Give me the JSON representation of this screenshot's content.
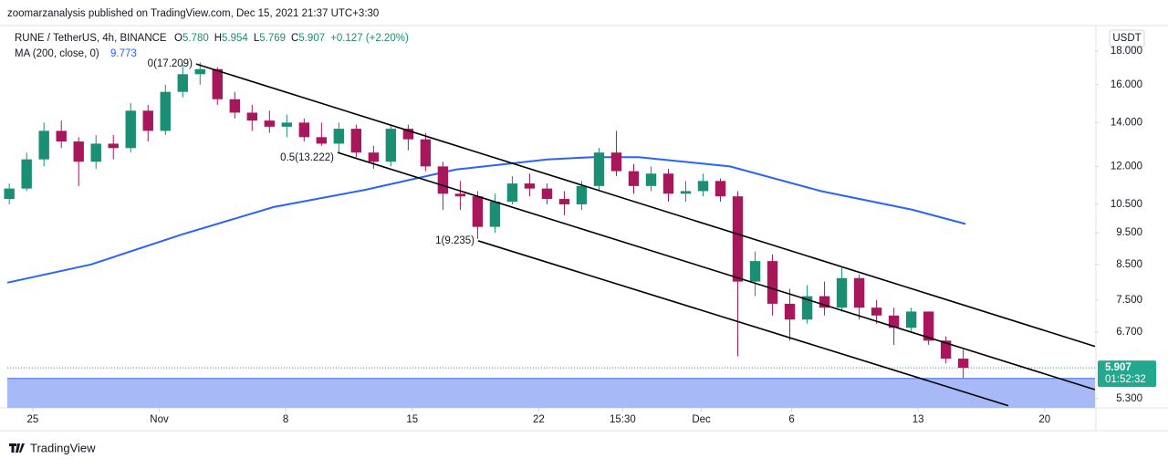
{
  "header": {
    "publisher": "zoomarzanalysis published on TradingView.com, Dec 15, 2021 21:37 UTC+3:30"
  },
  "legend": {
    "symbol": "RUNE / TetherUS, 4h, BINANCE",
    "ohlc": [
      {
        "name": "O",
        "value": "5.780"
      },
      {
        "name": "H",
        "value": "5.954"
      },
      {
        "name": "L",
        "value": "5.769"
      },
      {
        "name": "C",
        "value": "5.907"
      }
    ],
    "change": "+0.127 (+2.20%)",
    "indicator": "MA (200, close, 0)",
    "indicator_value": "9.773"
  },
  "currency": "USDT",
  "countdown": "01:52:32",
  "footer": "TradingView",
  "chart_data": {
    "type": "candlestick",
    "log_scale": true,
    "grid": false,
    "up_color": "#1b8f74",
    "down_color": "#a8175c",
    "x": [
      22.7,
      23.66,
      24.62,
      25.58,
      26.54,
      27.5,
      28.46,
      29.42,
      30.38,
      31.34,
      32.3,
      33.26,
      34.22,
      35.18,
      36.14,
      37.1,
      38.06,
      39.02,
      39.98,
      40.94,
      41.9,
      42.86,
      43.82,
      44.78,
      45.74,
      46.7,
      47.66,
      48.62,
      49.58,
      50.54,
      51.5,
      52.46,
      53.42,
      54.38,
      55.34,
      56.3,
      57.26,
      58.22,
      59.18,
      60.14,
      61.1,
      62.06,
      63.02,
      63.98,
      64.94,
      65.9,
      66.86,
      67.82,
      68.78,
      69.74,
      70.7,
      71.66,
      72.62,
      73.58,
      74.54,
      75.5
    ],
    "open": [
      10.7,
      11.1,
      12.3,
      13.6,
      13.1,
      12.2,
      13.0,
      12.8,
      14.6,
      13.6,
      15.6,
      16.6,
      16.9,
      15.2,
      14.5,
      14.1,
      13.8,
      14.0,
      13.3,
      13.0,
      13.7,
      12.6,
      12.2,
      13.7,
      13.2,
      12.0,
      10.9,
      10.8,
      9.7,
      10.6,
      11.3,
      11.1,
      10.7,
      10.5,
      11.2,
      12.6,
      11.8,
      11.2,
      11.7,
      10.9,
      11.0,
      11.4,
      10.8,
      8.0,
      8.6,
      7.4,
      7.0,
      7.6,
      7.3,
      8.1,
      7.3,
      7.1,
      6.8,
      7.2,
      6.5,
      6.1
    ],
    "high": [
      11.3,
      12.6,
      14.0,
      14.1,
      13.3,
      13.4,
      13.4,
      15.0,
      14.9,
      16.0,
      17.2,
      17.3,
      17.0,
      15.6,
      14.9,
      14.6,
      14.4,
      14.2,
      14.0,
      14.0,
      13.9,
      12.9,
      13.9,
      13.9,
      13.5,
      12.2,
      11.4,
      11.0,
      10.9,
      11.6,
      11.7,
      11.3,
      11.0,
      11.4,
      12.8,
      13.6,
      12.1,
      12.0,
      11.9,
      11.4,
      11.7,
      11.5,
      11.0,
      8.9,
      8.8,
      7.8,
      7.9,
      8.0,
      8.4,
      8.2,
      7.5,
      7.3,
      7.3,
      7.2,
      6.6,
      6.3
    ],
    "low": [
      10.5,
      11.0,
      12.0,
      12.8,
      11.2,
      11.9,
      12.3,
      12.6,
      13.1,
      13.4,
      15.3,
      16.0,
      14.9,
      14.2,
      13.6,
      13.5,
      13.3,
      13.1,
      12.9,
      12.6,
      12.4,
      11.9,
      12.0,
      12.7,
      11.8,
      10.3,
      10.3,
      9.3,
      9.5,
      10.5,
      10.8,
      10.5,
      10.1,
      10.3,
      11.0,
      11.6,
      10.9,
      11.0,
      10.6,
      10.6,
      10.8,
      10.6,
      6.15,
      7.6,
      7.1,
      6.5,
      6.9,
      7.1,
      7.2,
      7.0,
      6.9,
      6.4,
      6.7,
      6.4,
      6.0,
      5.7
    ],
    "close": [
      11.1,
      12.3,
      13.6,
      13.1,
      12.2,
      13.0,
      12.8,
      14.6,
      13.6,
      15.6,
      16.6,
      16.9,
      15.2,
      14.5,
      14.1,
      13.8,
      14.0,
      13.3,
      13.0,
      13.7,
      12.6,
      12.2,
      13.7,
      13.2,
      12.0,
      10.9,
      10.8,
      9.7,
      10.6,
      11.3,
      11.1,
      10.7,
      10.5,
      11.2,
      12.6,
      11.8,
      11.2,
      11.7,
      10.9,
      11.0,
      11.4,
      10.8,
      8.0,
      8.6,
      7.4,
      7.0,
      7.6,
      7.3,
      8.1,
      7.3,
      7.1,
      6.8,
      7.2,
      6.5,
      6.1,
      5.907
    ],
    "xlim": [
      22.59,
      82.79
    ],
    "xticks": [
      {
        "value": 24,
        "label": "25"
      },
      {
        "value": 31,
        "label": "Nov"
      },
      {
        "value": 38,
        "label": "8"
      },
      {
        "value": 45,
        "label": "15"
      },
      {
        "value": 52,
        "label": "22"
      },
      {
        "value": 56.65,
        "label": "15:30"
      },
      {
        "value": 61,
        "label": "Dec"
      },
      {
        "value": 66,
        "label": "6"
      },
      {
        "value": 73,
        "label": "13"
      },
      {
        "value": 80,
        "label": "20"
      }
    ],
    "ylim": [
      5.13,
      19.7
    ],
    "yticks": [
      {
        "value": 18,
        "label": "18.000"
      },
      {
        "value": 16,
        "label": "16.000"
      },
      {
        "value": 14,
        "label": "14.000"
      },
      {
        "value": 12,
        "label": "12.000"
      },
      {
        "value": 10.5,
        "label": "10.500"
      },
      {
        "value": 9.5,
        "label": "9.500"
      },
      {
        "value": 8.5,
        "label": "8.500"
      },
      {
        "value": 7.5,
        "label": "7.500"
      },
      {
        "value": 6.7,
        "label": "6.700"
      },
      {
        "value": 5.3,
        "label": "5.300"
      }
    ],
    "last_price": {
      "value": 5.907,
      "label": "5.907"
    },
    "last_price_color": "#22a88f",
    "ma": {
      "x": [
        22.59,
        27.23,
        32.28,
        37.33,
        42.38,
        47.43,
        52.48,
        55.0,
        57.54,
        62.59,
        67.64,
        72.69,
        75.62
      ],
      "values": [
        7.97,
        8.5,
        9.45,
        10.4,
        11.05,
        11.87,
        12.3,
        12.4,
        12.4,
        12.0,
        11.0,
        10.3,
        9.8
      ],
      "color": "#2962ff"
    },
    "channel": {
      "color": "#000000",
      "lines": [
        {
          "label": "0(17.209)",
          "x": [
            33.04,
            82.79
          ],
          "y": [
            17.209,
            6.37
          ]
        },
        {
          "label": "0.5(13.222)",
          "x": [
            40.87,
            82.79
          ],
          "y": [
            12.6,
            5.47
          ]
        },
        {
          "label": "1(9.235)",
          "x": [
            48.65,
            77.99
          ],
          "y": [
            9.235,
            5.17
          ]
        }
      ]
    },
    "zone": {
      "from": 5.13,
      "to": 5.69,
      "color": "#a7baf7",
      "edge_color": "#3f6ae6"
    }
  }
}
